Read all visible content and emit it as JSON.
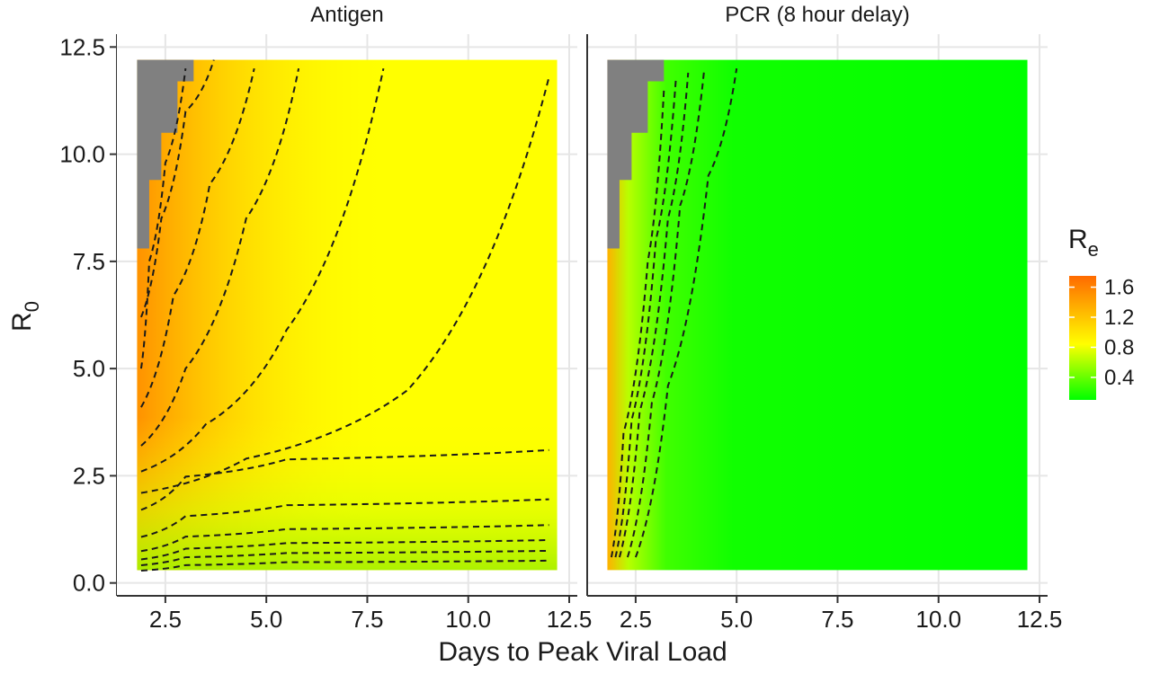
{
  "chart_data": {
    "type": "heatmap",
    "ylabel_main": "R",
    "ylabel_sub": "0",
    "xlabel": "Days to Peak Viral Load",
    "x_ticks": [
      2.5,
      5.0,
      7.5,
      10.0,
      12.5
    ],
    "x_tick_labels": [
      "2.5",
      "5.0",
      "7.5",
      "10.0",
      "12.5"
    ],
    "y_ticks": [
      0.0,
      2.5,
      5.0,
      7.5,
      10.0,
      12.5
    ],
    "y_tick_labels": [
      "0.0",
      "2.5",
      "5.0",
      "7.5",
      "10.0",
      "12.5"
    ],
    "xlim": [
      1.3,
      12.7
    ],
    "ylim": [
      -0.3,
      12.8
    ],
    "x_range": [
      1.8,
      12.2
    ],
    "y_range": [
      0.3,
      12.2
    ],
    "grid": true,
    "legend": {
      "title_main": "R",
      "title_sub": "e",
      "position": "right",
      "ticks": [
        1.6,
        1.2,
        0.8,
        0.4
      ],
      "tick_labels": [
        "1.6",
        "1.2",
        "0.8",
        "0.4"
      ],
      "range": [
        0.1,
        1.75
      ],
      "colors": {
        "low": "#00ff00",
        "mid": "#ffff00",
        "high": "#ff6a00",
        "missing": "#808080"
      }
    },
    "panels": [
      {
        "title": "Antigen",
        "missing_region": [
          [
            1.8,
            7.8
          ],
          [
            2.1,
            9.4
          ],
          [
            2.4,
            10.5
          ],
          [
            2.8,
            11.7
          ],
          [
            3.2,
            12.2
          ]
        ],
        "contours_vertical": [
          [
            [
              1.9,
              5.0
            ],
            [
              2.1,
              7.5
            ],
            [
              2.5,
              9.8
            ],
            [
              3.0,
              12.0
            ]
          ],
          [
            [
              1.9,
              6.2
            ],
            [
              2.4,
              8.5
            ],
            [
              3.0,
              11.0
            ],
            [
              3.7,
              12.2
            ]
          ],
          [
            [
              1.9,
              4.1
            ],
            [
              2.7,
              6.7
            ],
            [
              3.6,
              9.3
            ],
            [
              4.7,
              12.0
            ]
          ],
          [
            [
              1.9,
              3.2
            ],
            [
              3.0,
              5.0
            ],
            [
              4.5,
              8.5
            ],
            [
              5.8,
              12.0
            ]
          ],
          [
            [
              1.9,
              2.6
            ],
            [
              3.5,
              3.7
            ],
            [
              5.5,
              5.9
            ],
            [
              7.9,
              12.0
            ]
          ],
          [
            [
              1.9,
              2.1
            ],
            [
              4.5,
              2.9
            ],
            [
              8.5,
              4.5
            ],
            [
              12.0,
              11.8
            ]
          ]
        ],
        "contours_horizontal": [
          3.1,
          1.95,
          1.35,
          1.0,
          0.75,
          0.52
        ]
      },
      {
        "title": "PCR (8 hour delay)",
        "missing_region": [
          [
            1.8,
            7.8
          ],
          [
            2.1,
            9.4
          ],
          [
            2.4,
            10.5
          ],
          [
            2.8,
            11.7
          ],
          [
            3.2,
            12.2
          ]
        ],
        "contours_vertical": [
          [
            [
              1.9,
              0.6
            ],
            [
              2.2,
              3.5
            ],
            [
              2.8,
              7.5
            ],
            [
              3.2,
              11.5
            ]
          ],
          [
            [
              2.0,
              0.6
            ],
            [
              2.4,
              3.8
            ],
            [
              3.0,
              8.0
            ],
            [
              3.5,
              11.8
            ]
          ],
          [
            [
              2.1,
              0.6
            ],
            [
              2.6,
              4.0
            ],
            [
              3.3,
              8.5
            ],
            [
              3.8,
              11.9
            ]
          ],
          [
            [
              2.3,
              0.6
            ],
            [
              2.9,
              4.2
            ],
            [
              3.6,
              8.8
            ],
            [
              4.2,
              12.0
            ]
          ],
          [
            [
              2.5,
              0.6
            ],
            [
              3.3,
              4.6
            ],
            [
              4.3,
              9.5
            ],
            [
              5.0,
              12.0
            ]
          ]
        ],
        "contours_horizontal": []
      }
    ]
  }
}
